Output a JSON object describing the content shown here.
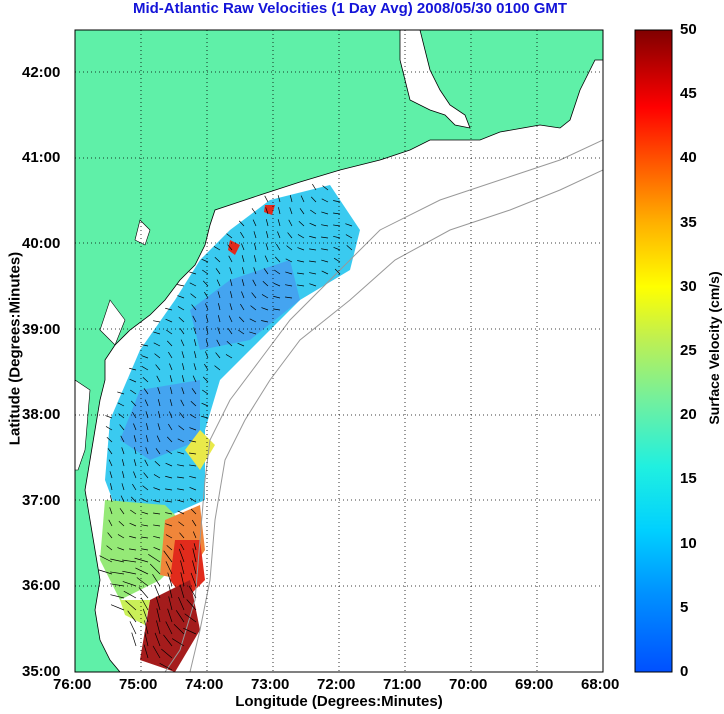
{
  "title": "Mid-Atlantic Raw Velocities (1 Day Avg) 2008/05/30 0100 GMT",
  "map": {
    "xlabel": "Longitude (Degrees:Minutes)",
    "ylabel": "Latitude (Degrees:Minutes)",
    "lon_ticks": [
      "76:00",
      "75:00",
      "74:00",
      "73:00",
      "72:00",
      "71:00",
      "70:00",
      "69:00",
      "68:00"
    ],
    "lat_ticks": [
      "42:00",
      "41:00",
      "40:00",
      "39:00",
      "38:00",
      "37:00",
      "36:00",
      "35:00"
    ],
    "lon_range": [
      -76,
      -68
    ],
    "lat_range": [
      35,
      42.5
    ],
    "land_color": "#5ff0a8",
    "grid": "dotted"
  },
  "colorbar": {
    "label": "Surface Velocity (cm/s)",
    "ticks": [
      "50",
      "45",
      "40",
      "35",
      "30",
      "25",
      "20",
      "15",
      "10",
      "5",
      "0"
    ],
    "range": [
      0,
      50
    ],
    "colormap": "jet"
  }
}
